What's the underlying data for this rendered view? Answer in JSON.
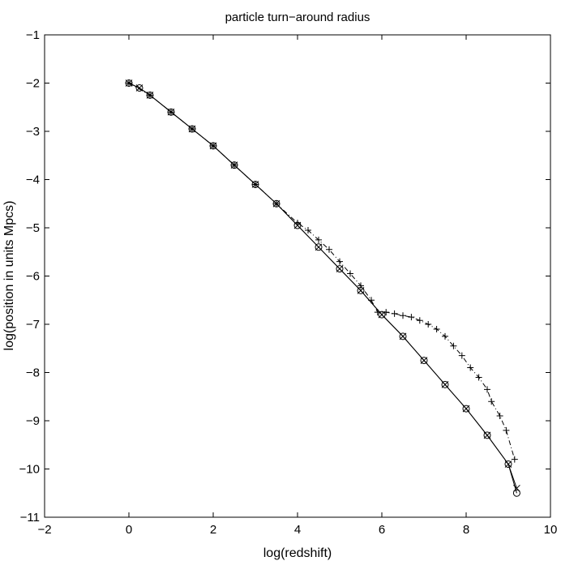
{
  "chart_data": {
    "type": "line",
    "title": "particle turn−around radius",
    "xlabel": "log(redshift)",
    "ylabel": "log(position in units Mpcs)",
    "xlim": [
      -2,
      10
    ],
    "ylim": [
      -11,
      -1
    ],
    "xticks": [
      -2,
      0,
      2,
      4,
      6,
      8,
      10
    ],
    "yticks": [
      -1,
      -2,
      -3,
      -4,
      -5,
      -6,
      -7,
      -8,
      -9,
      -10,
      -11
    ],
    "xtick_labels": [
      "−2",
      "0",
      "2",
      "4",
      "6",
      "8",
      "10"
    ],
    "ytick_labels": [
      "−1",
      "−2",
      "−3",
      "−4",
      "−5",
      "−6",
      "−7",
      "−8",
      "−9",
      "−10",
      "−11"
    ],
    "grid": false,
    "legend": "none",
    "series": [
      {
        "marker": "o",
        "line": "solid",
        "color": "#000000",
        "x": [
          0,
          0.25,
          0.5,
          1.0,
          1.5,
          2.0,
          2.5,
          3.0,
          3.5,
          4.0,
          4.5,
          5.0,
          5.5,
          6.0,
          6.5,
          7.0,
          7.5,
          8.0,
          8.5,
          9.0,
          9.2
        ],
        "y": [
          -2.0,
          -2.1,
          -2.25,
          -2.6,
          -2.95,
          -3.3,
          -3.7,
          -4.1,
          -4.5,
          -4.95,
          -5.4,
          -5.85,
          -6.3,
          -6.8,
          -7.25,
          -7.75,
          -8.25,
          -8.75,
          -9.3,
          -9.9,
          -10.5
        ]
      },
      {
        "marker": "x",
        "line": "solid",
        "color": "#000000",
        "x": [
          0,
          0.25,
          0.5,
          1.0,
          1.5,
          2.0,
          2.5,
          3.0,
          3.5,
          4.0,
          4.5,
          5.0,
          5.5,
          6.0,
          6.5,
          7.0,
          7.5,
          8.0,
          8.5,
          9.0,
          9.2
        ],
        "y": [
          -2.0,
          -2.1,
          -2.25,
          -2.6,
          -2.95,
          -3.3,
          -3.7,
          -4.1,
          -4.5,
          -4.95,
          -5.4,
          -5.85,
          -6.3,
          -6.8,
          -7.25,
          -7.75,
          -8.25,
          -8.75,
          -9.3,
          -9.9,
          -10.4
        ]
      },
      {
        "marker": "+",
        "line": "dashdot",
        "color": "#000000",
        "x": [
          0,
          0.5,
          1.0,
          1.5,
          2.0,
          2.5,
          3.0,
          3.5,
          4.0,
          4.25,
          4.5,
          4.75,
          5.0,
          5.25,
          5.5,
          5.75,
          5.9,
          6.1,
          6.3,
          6.5,
          6.7,
          6.9,
          7.1,
          7.3,
          7.5,
          7.7,
          7.9,
          8.1,
          8.3,
          8.5,
          8.6,
          8.8,
          8.95,
          9.15
        ],
        "y": [
          -2.0,
          -2.25,
          -2.6,
          -2.95,
          -3.3,
          -3.7,
          -4.1,
          -4.5,
          -4.9,
          -5.05,
          -5.25,
          -5.45,
          -5.7,
          -5.95,
          -6.2,
          -6.5,
          -6.75,
          -6.75,
          -6.78,
          -6.82,
          -6.85,
          -6.92,
          -7.0,
          -7.1,
          -7.25,
          -7.45,
          -7.65,
          -7.9,
          -8.1,
          -8.35,
          -8.6,
          -8.9,
          -9.2,
          -9.8
        ]
      }
    ]
  }
}
